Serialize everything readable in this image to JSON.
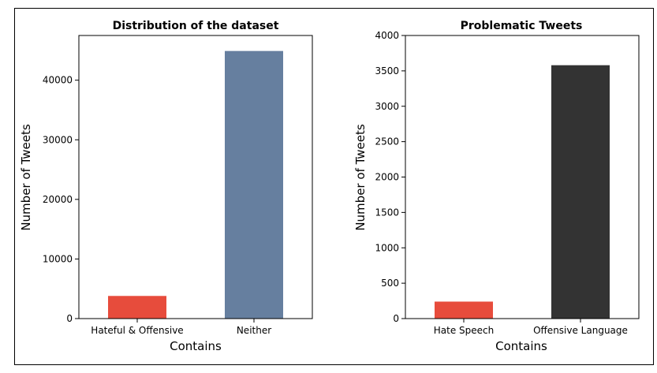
{
  "chart_data": [
    {
      "type": "bar",
      "title": "Distribution of the dataset",
      "xlabel": "Contains",
      "ylabel": "Number of Tweets",
      "categories": [
        "Hateful & Offensive",
        "Neither"
      ],
      "values": [
        3800,
        44900
      ],
      "colors": [
        "#e74c3c",
        "#667f9f"
      ],
      "ylim": [
        0,
        47500
      ],
      "yticks": [
        0,
        10000,
        20000,
        30000,
        40000
      ],
      "ytick_labels": [
        "0",
        "10000",
        "20000",
        "30000",
        "40000"
      ],
      "grid": false,
      "legend": "none"
    },
    {
      "type": "bar",
      "title": "Problematic Tweets",
      "xlabel": "Contains",
      "ylabel": "Number of Tweets",
      "categories": [
        "Hate Speech",
        "Offensive Language"
      ],
      "values": [
        240,
        3580
      ],
      "colors": [
        "#e74c3c",
        "#333333"
      ],
      "ylim": [
        0,
        4000
      ],
      "yticks": [
        0,
        500,
        1000,
        1500,
        2000,
        2500,
        3000,
        3500,
        4000
      ],
      "ytick_labels": [
        "0",
        "500",
        "1000",
        "1500",
        "2000",
        "2500",
        "3000",
        "3500",
        "4000"
      ],
      "grid": false,
      "legend": "none"
    }
  ]
}
